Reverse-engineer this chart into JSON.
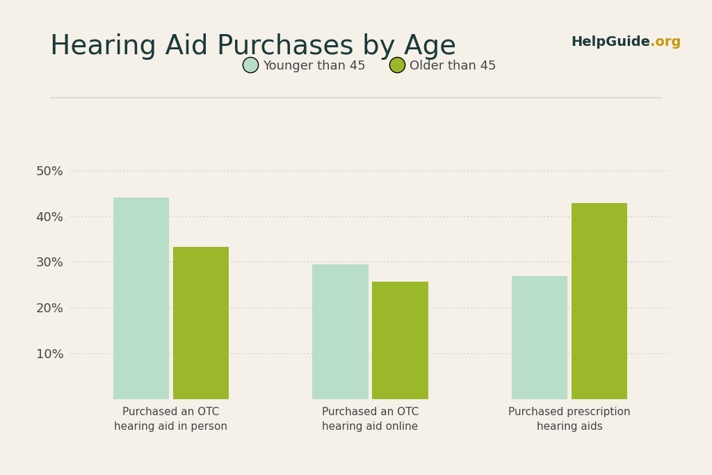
{
  "title": "Hearing Aid Purchases by Age",
  "helpguide_text": "HelpGuide",
  "helpguide_org": ".org",
  "categories": [
    "Purchased an OTC\nhearing aid in person",
    "Purchased an OTC\nhearing aid online",
    "Purchased prescription\nhearing aids"
  ],
  "younger_values": [
    0.44,
    0.295,
    0.268
  ],
  "older_values": [
    0.332,
    0.257,
    0.428
  ],
  "younger_color": "#b8ddc8",
  "older_color": "#9ab82a",
  "background_color": "#f5f0e8",
  "title_color": "#1a3a3a",
  "axis_label_color": "#444444",
  "helpguide_color": "#1a3a3a",
  "org_color": "#c8960c",
  "legend_label_younger": "Younger than 45",
  "legend_label_older": "Older than 45",
  "ylim": [
    0,
    0.54
  ],
  "yticks": [
    0.1,
    0.2,
    0.3,
    0.4,
    0.5
  ],
  "bar_width": 0.28,
  "separator_color": "#cccccc",
  "grid_color": "#bbbbbb"
}
